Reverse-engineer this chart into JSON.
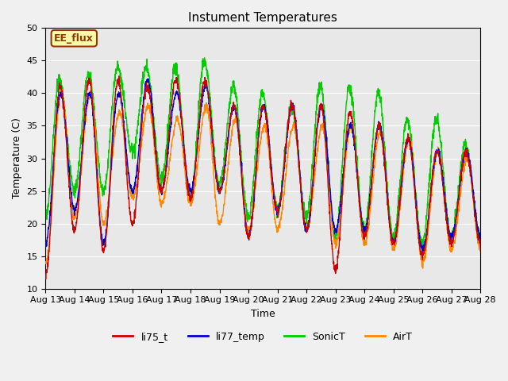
{
  "title": "Instument Temperatures",
  "xlabel": "Time",
  "ylabel": "Temperature (C)",
  "ylim": [
    10,
    50
  ],
  "background_color": "#e8e8e8",
  "fig_bg_color": "#f0f0f0",
  "annotation_text": "EE_flux",
  "annotation_bg": "#ffffaa",
  "annotation_border": "#993300",
  "legend_labels": [
    "li75_t",
    "li77_temp",
    "SonicT",
    "AirT"
  ],
  "line_colors": [
    "#cc0000",
    "#0000cc",
    "#00cc00",
    "#ff8800"
  ],
  "xtick_labels": [
    "Aug 13",
    "Aug 14",
    "Aug 15",
    "Aug 16",
    "Aug 17",
    "Aug 18",
    "Aug 19",
    "Aug 20",
    "Aug 21",
    "Aug 22",
    "Aug 23",
    "Aug 24",
    "Aug 25",
    "Aug 26",
    "Aug 27",
    "Aug 28"
  ],
  "title_fontsize": 11,
  "axis_fontsize": 9,
  "tick_fontsize": 8,
  "line_width": 1.0
}
